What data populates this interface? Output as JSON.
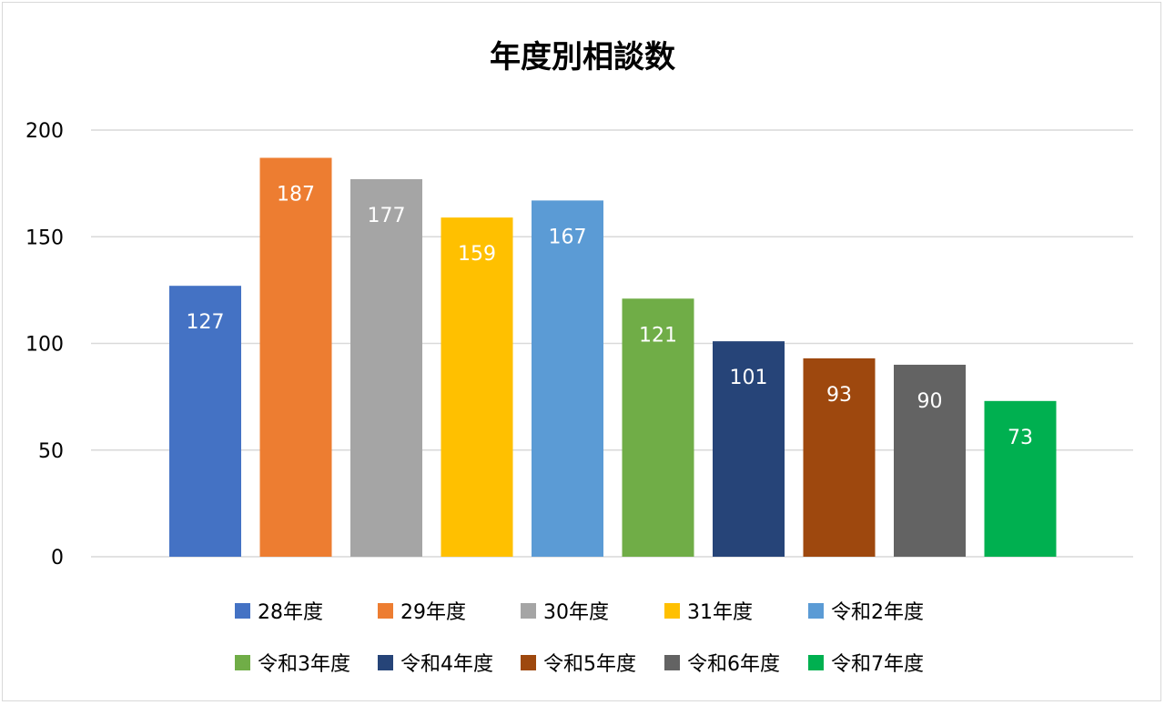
{
  "chart_data": {
    "type": "bar",
    "title": "年度別相談数",
    "xlabel": "",
    "ylabel": "",
    "ylim": [
      0,
      200
    ],
    "yticks": [
      0,
      50,
      100,
      150,
      200
    ],
    "grid": true,
    "legend_position": "bottom",
    "categories": [
      "28年度",
      "29年度",
      "30年度",
      "31年度",
      "令和2年度",
      "令和3年度",
      "令和4年度",
      "令和5年度",
      "令和6年度",
      "令和7年度"
    ],
    "values": [
      127,
      187,
      177,
      159,
      167,
      121,
      101,
      93,
      90,
      73
    ],
    "colors": [
      "#4472c4",
      "#ed7d31",
      "#a5a5a5",
      "#ffc000",
      "#5b9bd5",
      "#70ad47",
      "#264478",
      "#9e480e",
      "#636363",
      "#00b050"
    ],
    "data_labels": true
  }
}
